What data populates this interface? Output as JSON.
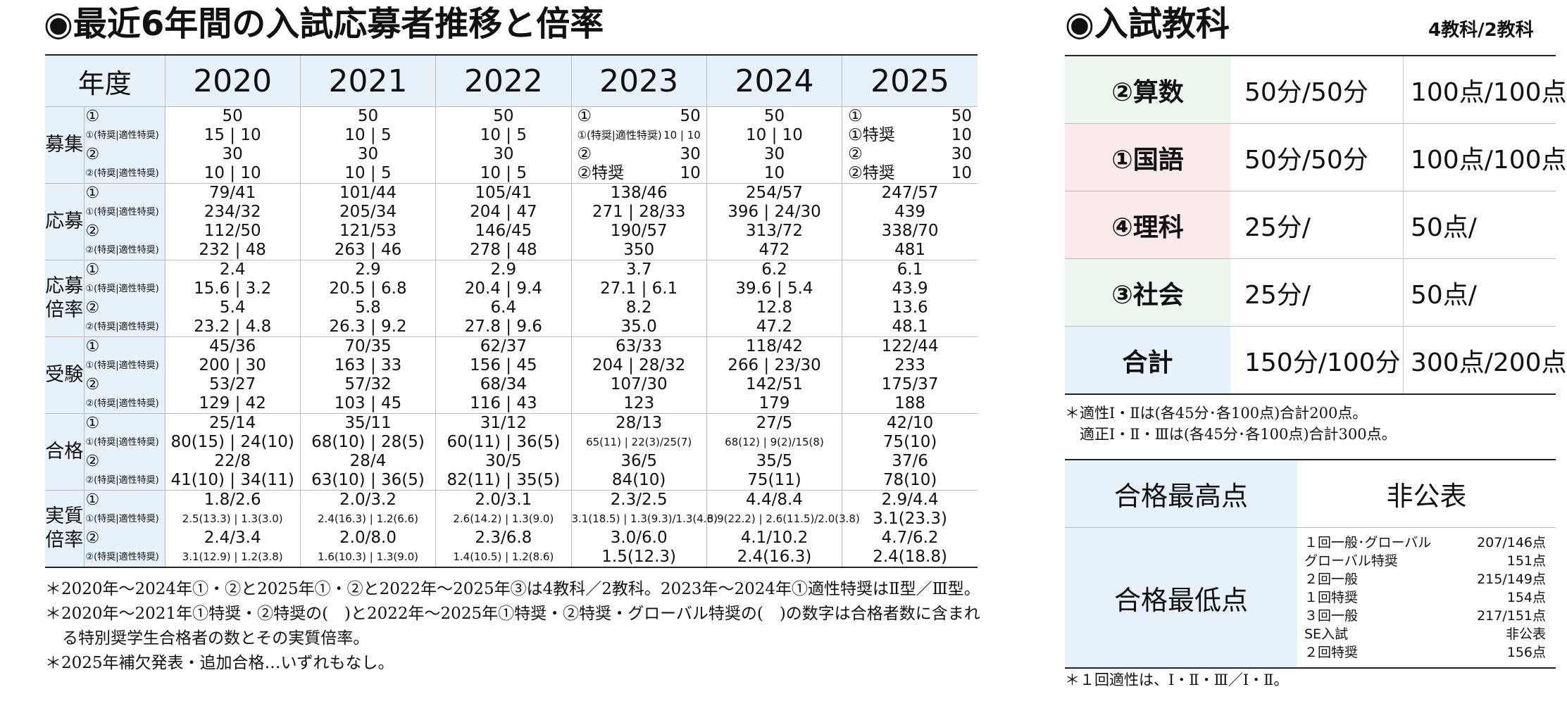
{
  "left_title": "◉最近6年間の入試応募者推移と倍率",
  "table": {
    "corner": "年度",
    "years": [
      "2020",
      "2021",
      "2022",
      "2023",
      "2024",
      "2025"
    ],
    "rows": [
      {
        "label": "募集",
        "keys": [
          "①",
          "①(特奨|適性特奨)",
          "②",
          "②(特奨|適性特奨)"
        ],
        "cells": [
          [
            "50",
            "15 | 10",
            "30",
            "10 | 10"
          ],
          [
            "50",
            "10 | 5",
            "30",
            "10 | 5"
          ],
          [
            "50",
            "10 | 5",
            "30",
            "10 | 5"
          ],
          [
            [
              "①",
              "50"
            ],
            [
              "①(特奨|適性特奨)",
              "10 | 10"
            ],
            [
              "②",
              "30"
            ],
            [
              "②特奨",
              "10"
            ]
          ],
          [
            "50",
            "10 | 10",
            "30",
            "10"
          ],
          [
            [
              "①",
              "50"
            ],
            [
              "①特奨",
              "10"
            ],
            [
              "②",
              "30"
            ],
            [
              "②特奨",
              "10"
            ]
          ]
        ]
      },
      {
        "label": "応募",
        "keys": [
          "①",
          "①(特奨|適性特奨)",
          "②",
          "②(特奨|適性特奨)"
        ],
        "cells": [
          [
            "79/41",
            "234/32",
            "112/50",
            "232 | 48"
          ],
          [
            "101/44",
            "205/34",
            "121/53",
            "263 | 46"
          ],
          [
            "105/41",
            "204 | 47",
            "146/45",
            "278 | 48"
          ],
          [
            "138/46",
            "271 | 28/33",
            "190/57",
            "350"
          ],
          [
            "254/57",
            "396 | 24/30",
            "313/72",
            "472"
          ],
          [
            "247/57",
            "439",
            "338/70",
            "481"
          ]
        ]
      },
      {
        "label": "応募倍率",
        "keys": [
          "①",
          "①(特奨|適性特奨)",
          "②",
          "②(特奨|適性特奨)"
        ],
        "cells": [
          [
            "2.4",
            "15.6 | 3.2",
            "5.4",
            "23.2 | 4.8"
          ],
          [
            "2.9",
            "20.5 | 6.8",
            "5.8",
            "26.3 | 9.2"
          ],
          [
            "2.9",
            "20.4 | 9.4",
            "6.4",
            "27.8 | 9.6"
          ],
          [
            "3.7",
            "27.1 | 6.1",
            "8.2",
            "35.0"
          ],
          [
            "6.2",
            "39.6 | 5.4",
            "12.8",
            "47.2"
          ],
          [
            "6.1",
            "43.9",
            "13.6",
            "48.1"
          ]
        ]
      },
      {
        "label": "受験",
        "keys": [
          "①",
          "①(特奨|適性特奨)",
          "②",
          "②(特奨|適性特奨)"
        ],
        "cells": [
          [
            "45/36",
            "200 | 30",
            "53/27",
            "129 | 42"
          ],
          [
            "70/35",
            "163 | 33",
            "57/32",
            "103 | 45"
          ],
          [
            "62/37",
            "156 | 45",
            "68/34",
            "116 | 43"
          ],
          [
            "63/33",
            "204 | 28/32",
            "107/30",
            "123"
          ],
          [
            "118/42",
            "266 | 23/30",
            "142/51",
            "179"
          ],
          [
            "122/44",
            "233",
            "175/37",
            "188"
          ]
        ]
      },
      {
        "label": "合格",
        "keys": [
          "①",
          "①(特奨|適性特奨)",
          "②",
          "②(特奨|適性特奨)"
        ],
        "cells": [
          [
            "25/14",
            "80(15) | 24(10)",
            "22/8",
            "41(10) | 34(11)"
          ],
          [
            "35/11",
            "68(10) | 28(5)",
            "28/4",
            "63(10) | 36(5)"
          ],
          [
            "31/12",
            "60(11) | 36(5)",
            "30/5",
            "82(11) | 35(5)"
          ],
          [
            "28/13",
            "65(11) | 22(3)/25(7)",
            "36/5",
            "84(10)"
          ],
          [
            "27/5",
            "68(12) | 9(2)/15(8)",
            "35/5",
            "75(11)"
          ],
          [
            "42/10",
            "75(10)",
            "37/6",
            "78(10)"
          ]
        ]
      },
      {
        "label": "実質倍率",
        "keys": [
          "①",
          "①(特奨|適性特奨)",
          "②",
          "②(特奨|適性特奨)"
        ],
        "cells": [
          [
            "1.8/2.6",
            "2.5(13.3) | 1.3(3.0)",
            "2.4/3.4",
            "3.1(12.9) | 1.2(3.8)"
          ],
          [
            "2.0/3.2",
            "2.4(16.3) | 1.2(6.6)",
            "2.0/8.0",
            "1.6(10.3) | 1.3(9.0)"
          ],
          [
            "2.0/3.1",
            "2.6(14.2) | 1.3(9.0)",
            "2.3/6.8",
            "1.4(10.5) | 1.2(8.6)"
          ],
          [
            "2.3/2.5",
            "3.1(18.5) | 1.3(9.3)/1.3(4.6)",
            "3.0/6.0",
            "1.5(12.3)"
          ],
          [
            "4.4/8.4",
            "3.9(22.2) | 2.6(11.5)/2.0(3.8)",
            "4.1/10.2",
            "2.4(16.3)"
          ],
          [
            "2.9/4.4",
            "3.1(23.3)",
            "4.7/6.2",
            "2.4(18.8)"
          ]
        ]
      }
    ]
  },
  "footnotes_left": [
    "＊2020年～2024年①・②と2025年①・②と2022年～2025年③は4教科／2教科。2023年～2024年①適性特奨はⅡ型／Ⅲ型。",
    "＊2020年～2021年①特奨・②特奨の(　)と2022年～2025年①特奨・②特奨・グローバル特奨の(　)の数字は合格者数に含まれる特別奨学生合格者の数とその実質倍率。",
    "＊2025年補欠発表・追加合格…いずれもなし。"
  ],
  "right_title": "◉入試教科",
  "subject_type": "4教科/2教科",
  "subjects": [
    {
      "name": "②算数",
      "time": "50分/50分",
      "points": "100点/100点",
      "bg": "#eef7ee"
    },
    {
      "name": "①国語",
      "time": "50分/50分",
      "points": "100点/100点",
      "bg": "#fbeaea"
    },
    {
      "name": "④理科",
      "time": "25分/",
      "points": "50点/",
      "bg": "#fbeaea"
    },
    {
      "name": "③社会",
      "time": "25分/",
      "points": "50点/",
      "bg": "#eef7ee"
    },
    {
      "name": "合計",
      "time": "150分/100分",
      "points": "300点/200点",
      "bg": "#e7f1fa"
    }
  ],
  "subject_notes": [
    "＊適性Ⅰ・Ⅱは(各45分･各100点)合計200点。",
    "　適正Ⅰ・Ⅱ・Ⅲは(各45分･各100点)合計300点。"
  ],
  "max_score": {
    "label": "合格最高点",
    "value": "非公表"
  },
  "min_score": {
    "label": "合格最低点",
    "items": [
      {
        "name": "１回一般･グローバル",
        "value": "207/146点"
      },
      {
        "name": "グローバル特奨",
        "value": "151点"
      },
      {
        "name": "２回一般",
        "value": "215/149点"
      },
      {
        "name": "１回特奨",
        "value": "154点"
      },
      {
        "name": "３回一般",
        "value": "217/151点"
      },
      {
        "name": "SE入試",
        "value": "非公表"
      },
      {
        "name": "２回特奨",
        "value": "156点"
      }
    ]
  },
  "score_note": "＊１回適性は、Ⅰ・Ⅱ・Ⅲ／Ⅰ・Ⅱ。"
}
